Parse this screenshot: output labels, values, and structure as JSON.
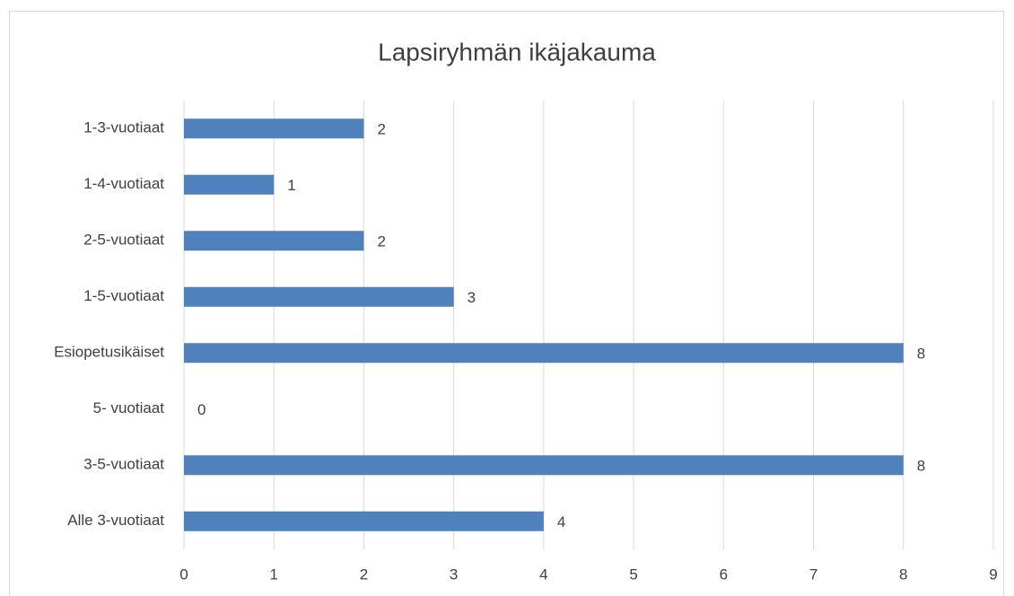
{
  "chart_data": {
    "type": "hbar",
    "title": "Lapsiryhmän ikäjakauma",
    "categories": [
      "1-3-vuotiaat",
      "1-4-vuotiaat",
      "2-5-vuotiaat",
      "1-5-vuotiaat",
      "Esiopetusikäiset",
      "5- vuotiaat",
      "3-5-vuotiaat",
      "Alle 3-vuotiaat"
    ],
    "values": [
      2,
      1,
      2,
      3,
      8,
      0,
      8,
      4
    ],
    "color": "#4f81bd",
    "xlim": [
      0,
      9
    ],
    "xticks": [
      0,
      1,
      2,
      3,
      4,
      5,
      6,
      7,
      8,
      9
    ],
    "grid": true
  }
}
